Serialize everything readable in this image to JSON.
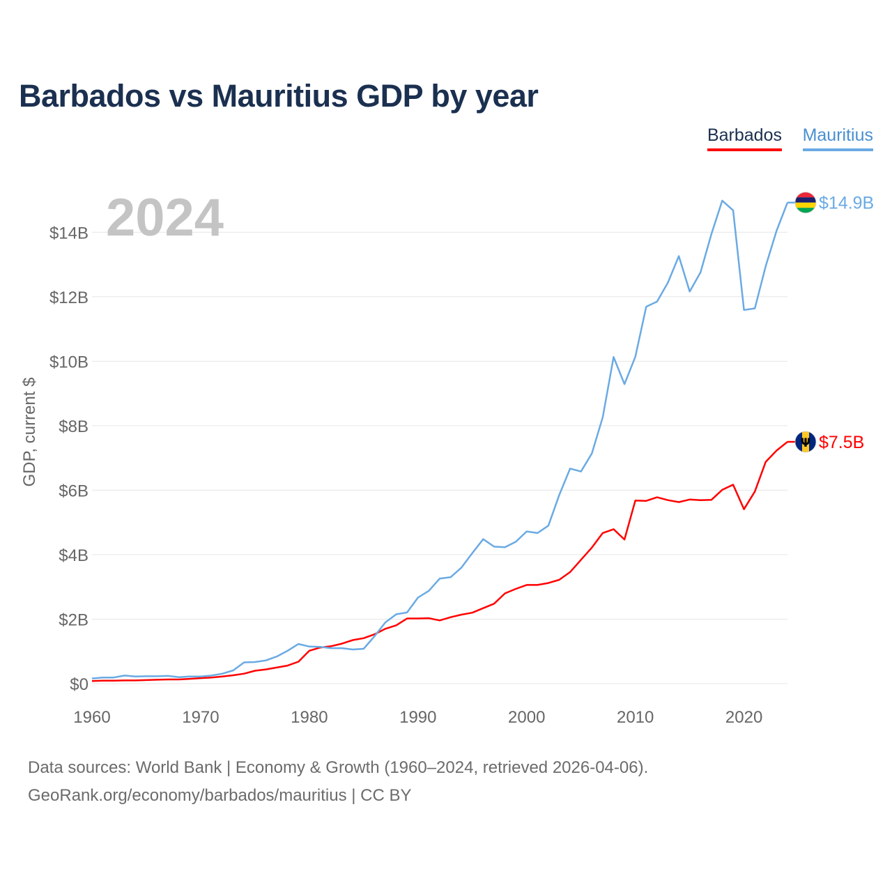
{
  "title": "Barbados vs Mauritius GDP by year",
  "year_label": "2024",
  "legend": [
    {
      "name": "Barbados",
      "color": "#ff0000"
    },
    {
      "name": "Mauritius",
      "color": "#6aaae4"
    }
  ],
  "sources": {
    "line1": "Data sources: World Bank | Economy & Growth (1960–2024, retrieved 2026-04-06).",
    "line2": "GeoRank.org/economy/barbados/mauritius | CC BY"
  },
  "chart_data": {
    "type": "line",
    "title": "Barbados vs Mauritius GDP by year",
    "xlabel": "",
    "ylabel": "GDP, current $",
    "xlim": [
      1960,
      2024
    ],
    "ylim": [
      0,
      15
    ],
    "y_unit": "billion USD",
    "x_ticks": [
      1960,
      1970,
      1980,
      1990,
      2000,
      2010,
      2020
    ],
    "y_ticks": [
      0,
      2,
      4,
      6,
      8,
      10,
      12,
      14
    ],
    "y_tick_labels": [
      "$0",
      "$2B",
      "$4B",
      "$6B",
      "$8B",
      "$10B",
      "$12B",
      "$14B"
    ],
    "grid": true,
    "legend_position": "top-right",
    "x": [
      1960,
      1961,
      1962,
      1963,
      1964,
      1965,
      1966,
      1967,
      1968,
      1969,
      1970,
      1971,
      1972,
      1973,
      1974,
      1975,
      1976,
      1977,
      1978,
      1979,
      1980,
      1981,
      1982,
      1983,
      1984,
      1985,
      1986,
      1987,
      1988,
      1989,
      1990,
      1991,
      1992,
      1993,
      1994,
      1995,
      1996,
      1997,
      1998,
      1999,
      2000,
      2001,
      2002,
      2003,
      2004,
      2005,
      2006,
      2007,
      2008,
      2009,
      2010,
      2011,
      2012,
      2013,
      2014,
      2015,
      2016,
      2017,
      2018,
      2019,
      2020,
      2021,
      2022,
      2023,
      2024
    ],
    "series": [
      {
        "name": "Barbados",
        "color": "#ff0000",
        "end_label": "$7.5B",
        "flag": "barbados-flag-icon",
        "values": [
          0.08,
          0.09,
          0.09,
          0.1,
          0.1,
          0.11,
          0.12,
          0.13,
          0.13,
          0.15,
          0.17,
          0.19,
          0.22,
          0.26,
          0.31,
          0.4,
          0.44,
          0.5,
          0.56,
          0.68,
          1.02,
          1.12,
          1.16,
          1.24,
          1.35,
          1.41,
          1.53,
          1.7,
          1.81,
          2.02,
          2.02,
          2.03,
          1.96,
          2.06,
          2.14,
          2.2,
          2.34,
          2.48,
          2.8,
          2.94,
          3.06,
          3.06,
          3.12,
          3.22,
          3.46,
          3.84,
          4.22,
          4.67,
          4.79,
          4.47,
          5.68,
          5.67,
          5.78,
          5.69,
          5.63,
          5.71,
          5.69,
          5.7,
          6.01,
          6.17,
          5.41,
          5.96,
          6.88,
          7.23,
          7.5
        ]
      },
      {
        "name": "Mauritius",
        "color": "#6aaae4",
        "end_label": "$14.9B",
        "flag": "mauritius-flag-icon",
        "values": [
          0.16,
          0.19,
          0.19,
          0.25,
          0.22,
          0.23,
          0.23,
          0.24,
          0.2,
          0.22,
          0.22,
          0.25,
          0.31,
          0.41,
          0.66,
          0.67,
          0.72,
          0.84,
          1.02,
          1.23,
          1.15,
          1.14,
          1.1,
          1.1,
          1.06,
          1.08,
          1.47,
          1.9,
          2.15,
          2.21,
          2.67,
          2.88,
          3.26,
          3.3,
          3.6,
          4.05,
          4.48,
          4.25,
          4.23,
          4.4,
          4.72,
          4.67,
          4.9,
          5.85,
          6.67,
          6.58,
          7.14,
          8.26,
          10.13,
          9.29,
          10.14,
          11.69,
          11.85,
          12.44,
          13.26,
          12.16,
          12.76,
          13.94,
          14.98,
          14.68,
          11.59,
          11.64,
          12.95,
          14.05,
          14.92
        ]
      }
    ]
  }
}
